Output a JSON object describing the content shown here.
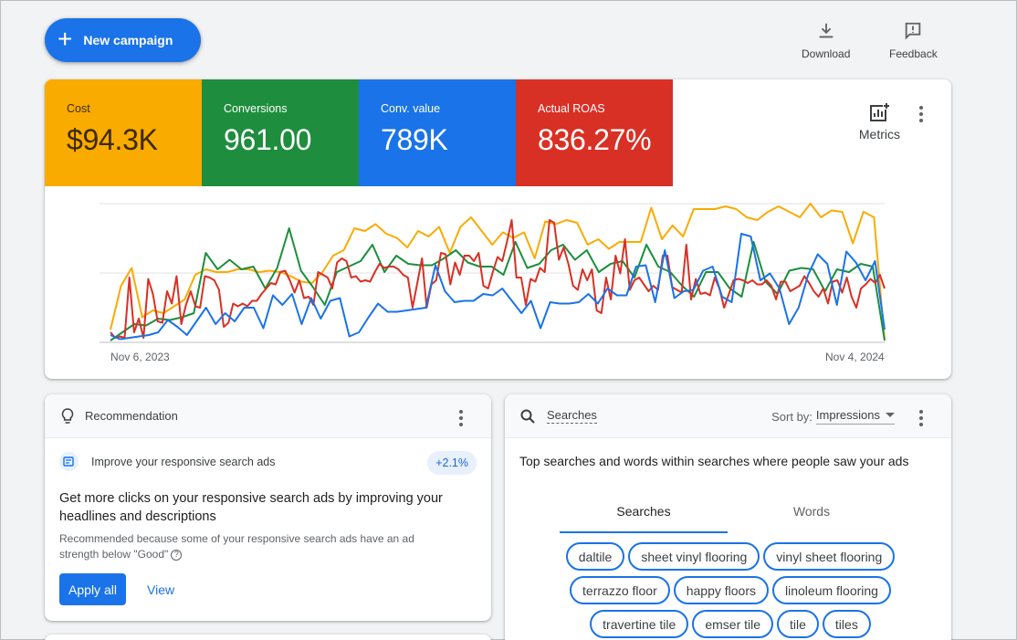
{
  "top_bar": {
    "new_campaign_label": "New campaign",
    "download_label": "Download",
    "feedback_label": "Feedback"
  },
  "overview": {
    "metrics": [
      {
        "label": "Cost",
        "value": "$94.3K",
        "color": "#f9ab00"
      },
      {
        "label": "Conversions",
        "value": "961.00",
        "color": "#1e8e3e"
      },
      {
        "label": "Conv. value",
        "value": "789K",
        "color": "#1a73e8"
      },
      {
        "label": "Actual ROAS",
        "value": "836.27%",
        "color": "#d93025"
      }
    ],
    "metrics_button_label": "Metrics"
  },
  "chart_data": {
    "type": "line",
    "x_start": "Nov 6, 2023",
    "x_end": "Nov 4, 2024",
    "x_tick_labels": [
      "Nov 6, 2023",
      "Nov 4, 2024"
    ],
    "y_scale": "normalized per metric (0-100)",
    "grid": true,
    "series": [
      {
        "name": "Cost",
        "color": "#f9ab00",
        "values": [
          8,
          40,
          53,
          17,
          22,
          20,
          25,
          30,
          48,
          52,
          50,
          50,
          52,
          52,
          50,
          51,
          50,
          47,
          43,
          42,
          50,
          62,
          66,
          82,
          80,
          85,
          78,
          75,
          68,
          80,
          76,
          83,
          64,
          83,
          90,
          80,
          70,
          79,
          75,
          79,
          60,
          87,
          85,
          88,
          86,
          70,
          74,
          67,
          72,
          72,
          72,
          97,
          74,
          84,
          76,
          96,
          96,
          96,
          98,
          96,
          90,
          88,
          94,
          98,
          94,
          90,
          100,
          90,
          95,
          94,
          71,
          94,
          90,
          0
        ]
      },
      {
        "name": "Conversions",
        "color": "#1e8e3e",
        "values": [
          0,
          6,
          12,
          11,
          16,
          15,
          17,
          20,
          64,
          52,
          59,
          52,
          54,
          38,
          53,
          82,
          51,
          39,
          26,
          50,
          54,
          58,
          70,
          50,
          62,
          56,
          55,
          55,
          60,
          66,
          57,
          54,
          54,
          48,
          72,
          53,
          56,
          66,
          70,
          59,
          66,
          50,
          56,
          58,
          46,
          70,
          54,
          50,
          40,
          32,
          50,
          50,
          38,
          32,
          72,
          43,
          34,
          51,
          53,
          52,
          36,
          52,
          50,
          56,
          54,
          0
        ]
      },
      {
        "name": "Conv. value",
        "color": "#1a73e8",
        "values": [
          4,
          1,
          2,
          3,
          4,
          6,
          15,
          10,
          4,
          14,
          24,
          12,
          20,
          14,
          24,
          24,
          9,
          33,
          26,
          34,
          12,
          31,
          16,
          29,
          31,
          3,
          6,
          17,
          27,
          21,
          21,
          22,
          23,
          24,
          55,
          36,
          28,
          29,
          29,
          34,
          33,
          38,
          29,
          20,
          29,
          9,
          28,
          27,
          27,
          28,
          34,
          27,
          38,
          33,
          33,
          54,
          55,
          28,
          66,
          31,
          36,
          37,
          51,
          54,
          32,
          28,
          78,
          76,
          44,
          49,
          38,
          12,
          24,
          48,
          63,
          56,
          26,
          65,
          57,
          44,
          58,
          8
        ]
      },
      {
        "name": "Actual ROAS",
        "color": "#d93025",
        "values": [
          6,
          2,
          3,
          2,
          46,
          6,
          16,
          2,
          45,
          34,
          14,
          13,
          36,
          27,
          47,
          12,
          26,
          36,
          25,
          24,
          47,
          46,
          44,
          37,
          10,
          13,
          27,
          25,
          27,
          25,
          29,
          29,
          34,
          38,
          42,
          41,
          50,
          51,
          44,
          35,
          44,
          31,
          32,
          26,
          50,
          48,
          46,
          38,
          57,
          60,
          58,
          46,
          47,
          43,
          44,
          43,
          50,
          56,
          53,
          54,
          54,
          52,
          48,
          46,
          24,
          42,
          60,
          24,
          41,
          44,
          64,
          63,
          41,
          57,
          48,
          62,
          62,
          58,
          64,
          40,
          38,
          50,
          61,
          58,
          72,
          88,
          46,
          46,
          26,
          45,
          43,
          53,
          50,
          88,
          86,
          59,
          68,
          56,
          40,
          37,
          52,
          44,
          52,
          22,
          20,
          46,
          30,
          62,
          49,
          74,
          37,
          44,
          46,
          41,
          36,
          40,
          37,
          62,
          62,
          39,
          37,
          35,
          70,
          30,
          45,
          34,
          35,
          33,
          46,
          38,
          24,
          34,
          44,
          45,
          44,
          42,
          44,
          41,
          41,
          44,
          40,
          30,
          43,
          43,
          36,
          38,
          40,
          47,
          42,
          36,
          32,
          38,
          27,
          43,
          44,
          35,
          46,
          32,
          24,
          38,
          41,
          45,
          42,
          48,
          38
        ]
      }
    ]
  },
  "recommendation": {
    "header_label": "Recommendation",
    "subtitle": "Improve your responsive search ads",
    "uplift": "+2.1%",
    "title": "Get more clicks on your responsive search ads by improving your headlines and descriptions",
    "description": "Recommended because some of your responsive search ads have an ad strength below \"Good\"",
    "apply_label": "Apply all",
    "view_label": "View"
  },
  "searches": {
    "header_label": "Searches",
    "sort_prefix": "Sort by:",
    "sort_value": "Impressions",
    "description": "Top searches and words within searches where people saw your ads",
    "tabs": [
      {
        "label": "Searches",
        "active": true
      },
      {
        "label": "Words",
        "active": false
      }
    ],
    "chips": [
      [
        "daltile",
        "sheet vinyl flooring",
        "vinyl sheet flooring"
      ],
      [
        "terrazzo floor",
        "happy floors",
        "linoleum flooring"
      ],
      [
        "travertine tile",
        "emser tile",
        "tile",
        "tiles"
      ]
    ]
  }
}
